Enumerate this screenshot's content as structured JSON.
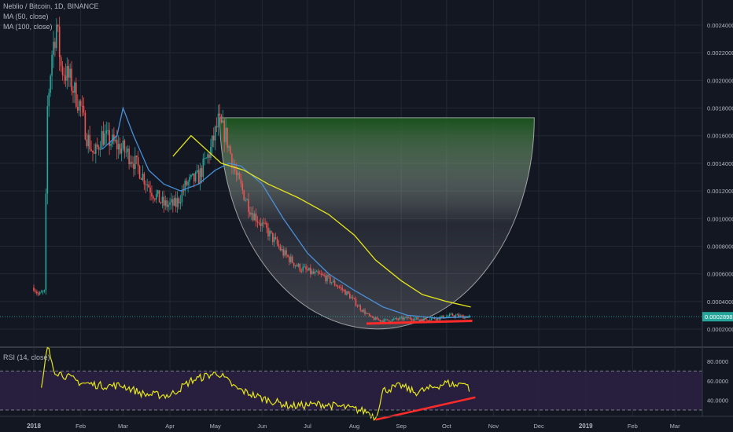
{
  "chart_data": {
    "type": "candlestick",
    "symbol": "Neblio / Bitcoin, 1D, BINANCE",
    "indicators": [
      "MA (50, close)",
      "MA (100, close)"
    ],
    "rsi_label": "RSI (14, close)",
    "price_axis_ticks": [
      "0.0024000",
      "0.0022000",
      "0.0020000",
      "0.0018000",
      "0.0016000",
      "0.0014000",
      "0.0012000",
      "0.0010000",
      "0.0008000",
      "0.0006000",
      "0.0004000",
      "0.0002000"
    ],
    "price_ylim": [
      0.00015,
      0.0025
    ],
    "last_price": "0.0002898",
    "rsi_axis_ticks": [
      "80.0000",
      "60.0000",
      "40.0000"
    ],
    "rsi_ylim": [
      20,
      100
    ],
    "rsi_bands": [
      70,
      30
    ],
    "time_axis": [
      "2018",
      "Feb",
      "Mar",
      "Apr",
      "May",
      "Jun",
      "Jul",
      "Aug",
      "Sep",
      "Oct",
      "Nov",
      "Dec",
      "2019",
      "Feb",
      "Mar"
    ],
    "close_path": [
      [
        "2018-01-01",
        0.0005
      ],
      [
        "2018-01-04",
        0.00045
      ],
      [
        "2018-01-08",
        0.00047
      ],
      [
        "2018-01-10",
        0.0018
      ],
      [
        "2018-01-13",
        0.0022
      ],
      [
        "2018-01-16",
        0.0024
      ],
      [
        "2018-01-19",
        0.0021
      ],
      [
        "2018-01-25",
        0.002
      ],
      [
        "2018-02-01",
        0.0018
      ],
      [
        "2018-02-05",
        0.0016
      ],
      [
        "2018-02-10",
        0.00145
      ],
      [
        "2018-02-15",
        0.0016
      ],
      [
        "2018-02-22",
        0.00155
      ],
      [
        "2018-03-01",
        0.0015
      ],
      [
        "2018-03-06",
        0.00145
      ],
      [
        "2018-03-12",
        0.00135
      ],
      [
        "2018-03-20",
        0.0012
      ],
      [
        "2018-03-28",
        0.0011
      ],
      [
        "2018-04-05",
        0.0011
      ],
      [
        "2018-04-12",
        0.00125
      ],
      [
        "2018-04-20",
        0.0013
      ],
      [
        "2018-04-28",
        0.0015
      ],
      [
        "2018-05-03",
        0.0017
      ],
      [
        "2018-05-08",
        0.0016
      ],
      [
        "2018-05-15",
        0.0013
      ],
      [
        "2018-05-25",
        0.00105
      ],
      [
        "2018-06-05",
        0.0009
      ],
      [
        "2018-06-15",
        0.00075
      ],
      [
        "2018-06-25",
        0.00065
      ],
      [
        "2018-07-05",
        0.0006
      ],
      [
        "2018-07-12",
        0.00058
      ],
      [
        "2018-07-20",
        0.00052
      ],
      [
        "2018-07-28",
        0.00045
      ],
      [
        "2018-08-05",
        0.00035
      ],
      [
        "2018-08-12",
        0.00028
      ],
      [
        "2018-08-20",
        0.00026
      ],
      [
        "2018-08-28",
        0.00027
      ],
      [
        "2018-09-05",
        0.00028
      ],
      [
        "2018-09-15",
        0.00027
      ],
      [
        "2018-09-25",
        0.00028
      ],
      [
        "2018-10-05",
        0.0003
      ],
      [
        "2018-10-12",
        0.00029
      ],
      [
        "2018-10-17",
        0.00029
      ]
    ],
    "ma50": [
      [
        "2018-02-15",
        0.0015
      ],
      [
        "2018-02-25",
        0.0016
      ],
      [
        "2018-03-01",
        0.0018
      ],
      [
        "2018-03-08",
        0.0016
      ],
      [
        "2018-03-18",
        0.00135
      ],
      [
        "2018-03-28",
        0.00125
      ],
      [
        "2018-04-08",
        0.0012
      ],
      [
        "2018-04-20",
        0.00125
      ],
      [
        "2018-05-01",
        0.00135
      ],
      [
        "2018-05-10",
        0.0014
      ],
      [
        "2018-05-18",
        0.00138
      ],
      [
        "2018-06-01",
        0.00125
      ],
      [
        "2018-06-15",
        0.001
      ],
      [
        "2018-07-01",
        0.00075
      ],
      [
        "2018-07-15",
        0.0006
      ],
      [
        "2018-08-01",
        0.00048
      ],
      [
        "2018-08-20",
        0.00036
      ],
      [
        "2018-09-05",
        0.0003
      ],
      [
        "2018-09-25",
        0.00028
      ],
      [
        "2018-10-17",
        0.00029
      ]
    ],
    "ma100": [
      [
        "2018-04-03",
        0.00145
      ],
      [
        "2018-04-15",
        0.0016
      ],
      [
        "2018-04-25",
        0.0015
      ],
      [
        "2018-05-05",
        0.0014
      ],
      [
        "2018-05-20",
        0.00135
      ],
      [
        "2018-06-05",
        0.00125
      ],
      [
        "2018-06-25",
        0.00115
      ],
      [
        "2018-07-15",
        0.00103
      ],
      [
        "2018-08-01",
        0.00088
      ],
      [
        "2018-08-15",
        0.0007
      ],
      [
        "2018-09-01",
        0.00055
      ],
      [
        "2018-09-15",
        0.00045
      ],
      [
        "2018-10-01",
        0.0004
      ],
      [
        "2018-10-17",
        0.00036
      ]
    ],
    "rsi": [
      [
        "2018-01-06",
        50
      ],
      [
        "2018-01-10",
        95
      ],
      [
        "2018-01-15",
        70
      ],
      [
        "2018-02-01",
        58
      ],
      [
        "2018-02-15",
        55
      ],
      [
        "2018-03-01",
        55
      ],
      [
        "2018-03-15",
        46
      ],
      [
        "2018-04-01",
        45
      ],
      [
        "2018-04-15",
        60
      ],
      [
        "2018-04-25",
        65
      ],
      [
        "2018-05-03",
        68
      ],
      [
        "2018-05-15",
        52
      ],
      [
        "2018-06-01",
        42
      ],
      [
        "2018-06-20",
        34
      ],
      [
        "2018-07-10",
        36
      ],
      [
        "2018-07-25",
        33
      ],
      [
        "2018-08-10",
        28
      ],
      [
        "2018-08-15",
        22
      ],
      [
        "2018-08-20",
        50
      ],
      [
        "2018-09-01",
        55
      ],
      [
        "2018-09-10",
        48
      ],
      [
        "2018-09-20",
        52
      ],
      [
        "2018-10-01",
        58
      ],
      [
        "2018-10-08",
        55
      ],
      [
        "2018-10-12",
        60
      ],
      [
        "2018-10-17",
        50
      ]
    ],
    "cup_annotation": {
      "top_price": 0.00173,
      "bottom_price": 0.0002,
      "start": "2018-05-04",
      "end": "2018-11-28"
    },
    "support_line": {
      "start": [
        "2018-08-09",
        0.00024
      ],
      "end": [
        "2018-10-18",
        0.00026
      ]
    },
    "rsi_trendline": {
      "start": [
        "2018-08-15",
        20
      ],
      "end": [
        "2018-10-20",
        43
      ]
    },
    "colors": {
      "up": "#26a69a",
      "down": "#ef5350",
      "ma50": "#4a90d9",
      "ma100": "#e6e61a",
      "rsi": "#e6e61a",
      "annotation": "#ff2a2a",
      "price_badge": "#26a69a",
      "rsi_band": "#2a2040",
      "background": "#131722",
      "grid": "#242832"
    }
  }
}
